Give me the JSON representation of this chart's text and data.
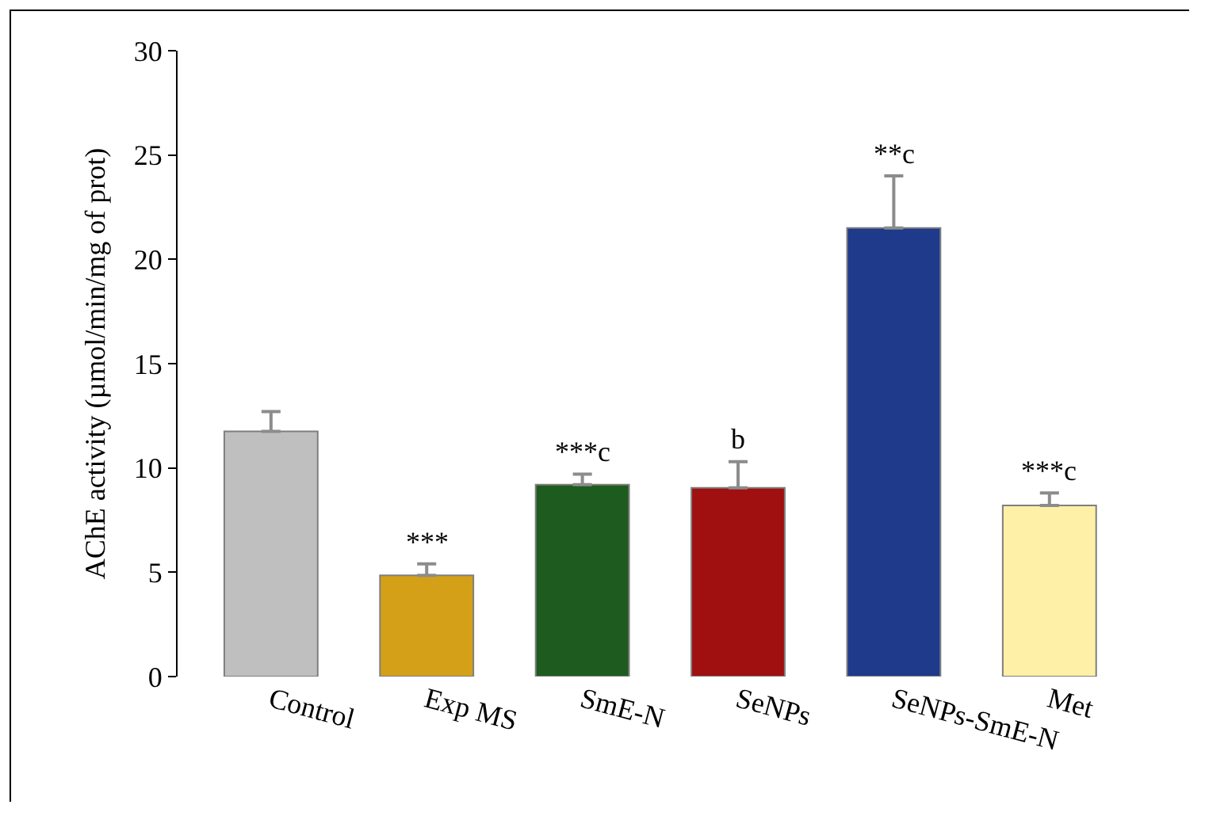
{
  "chart_data": {
    "type": "bar",
    "ylabel": "AChE activity (µmol/min/mg of prot)",
    "categories": [
      "Control",
      "Exp MS",
      "SmE-N",
      "SeNPs",
      "SeNPs-SmE-N",
      "Met"
    ],
    "values": [
      11.75,
      4.85,
      9.2,
      9.05,
      21.5,
      8.2
    ],
    "colors": [
      "#bfbfbf",
      "#d4a017",
      "#1e5b1e",
      "#a01010",
      "#1f3a8a",
      "#fff0a8"
    ],
    "errors": [
      [
        11.75,
        12.7
      ],
      [
        4.85,
        5.4
      ],
      [
        9.2,
        9.7
      ],
      [
        9.05,
        10.3
      ],
      [
        21.5,
        24.0
      ],
      [
        8.2,
        8.8
      ]
    ],
    "ylim": [
      0,
      30
    ],
    "yticks": [
      0,
      5,
      10,
      15,
      20,
      25,
      30
    ],
    "grid": false,
    "annotations": [
      {
        "text": "***",
        "x": "Exp MS",
        "y": 5.4
      },
      {
        "text": "***c",
        "x": "SmE-N",
        "y": 9.7
      },
      {
        "text": "b",
        "x": "SeNPs",
        "y": 10.3
      },
      {
        "text": "**c",
        "x": "SeNPs-SmE-N",
        "y": 24.0
      },
      {
        "text": "***c",
        "x": "Met",
        "y": 8.8
      }
    ]
  }
}
